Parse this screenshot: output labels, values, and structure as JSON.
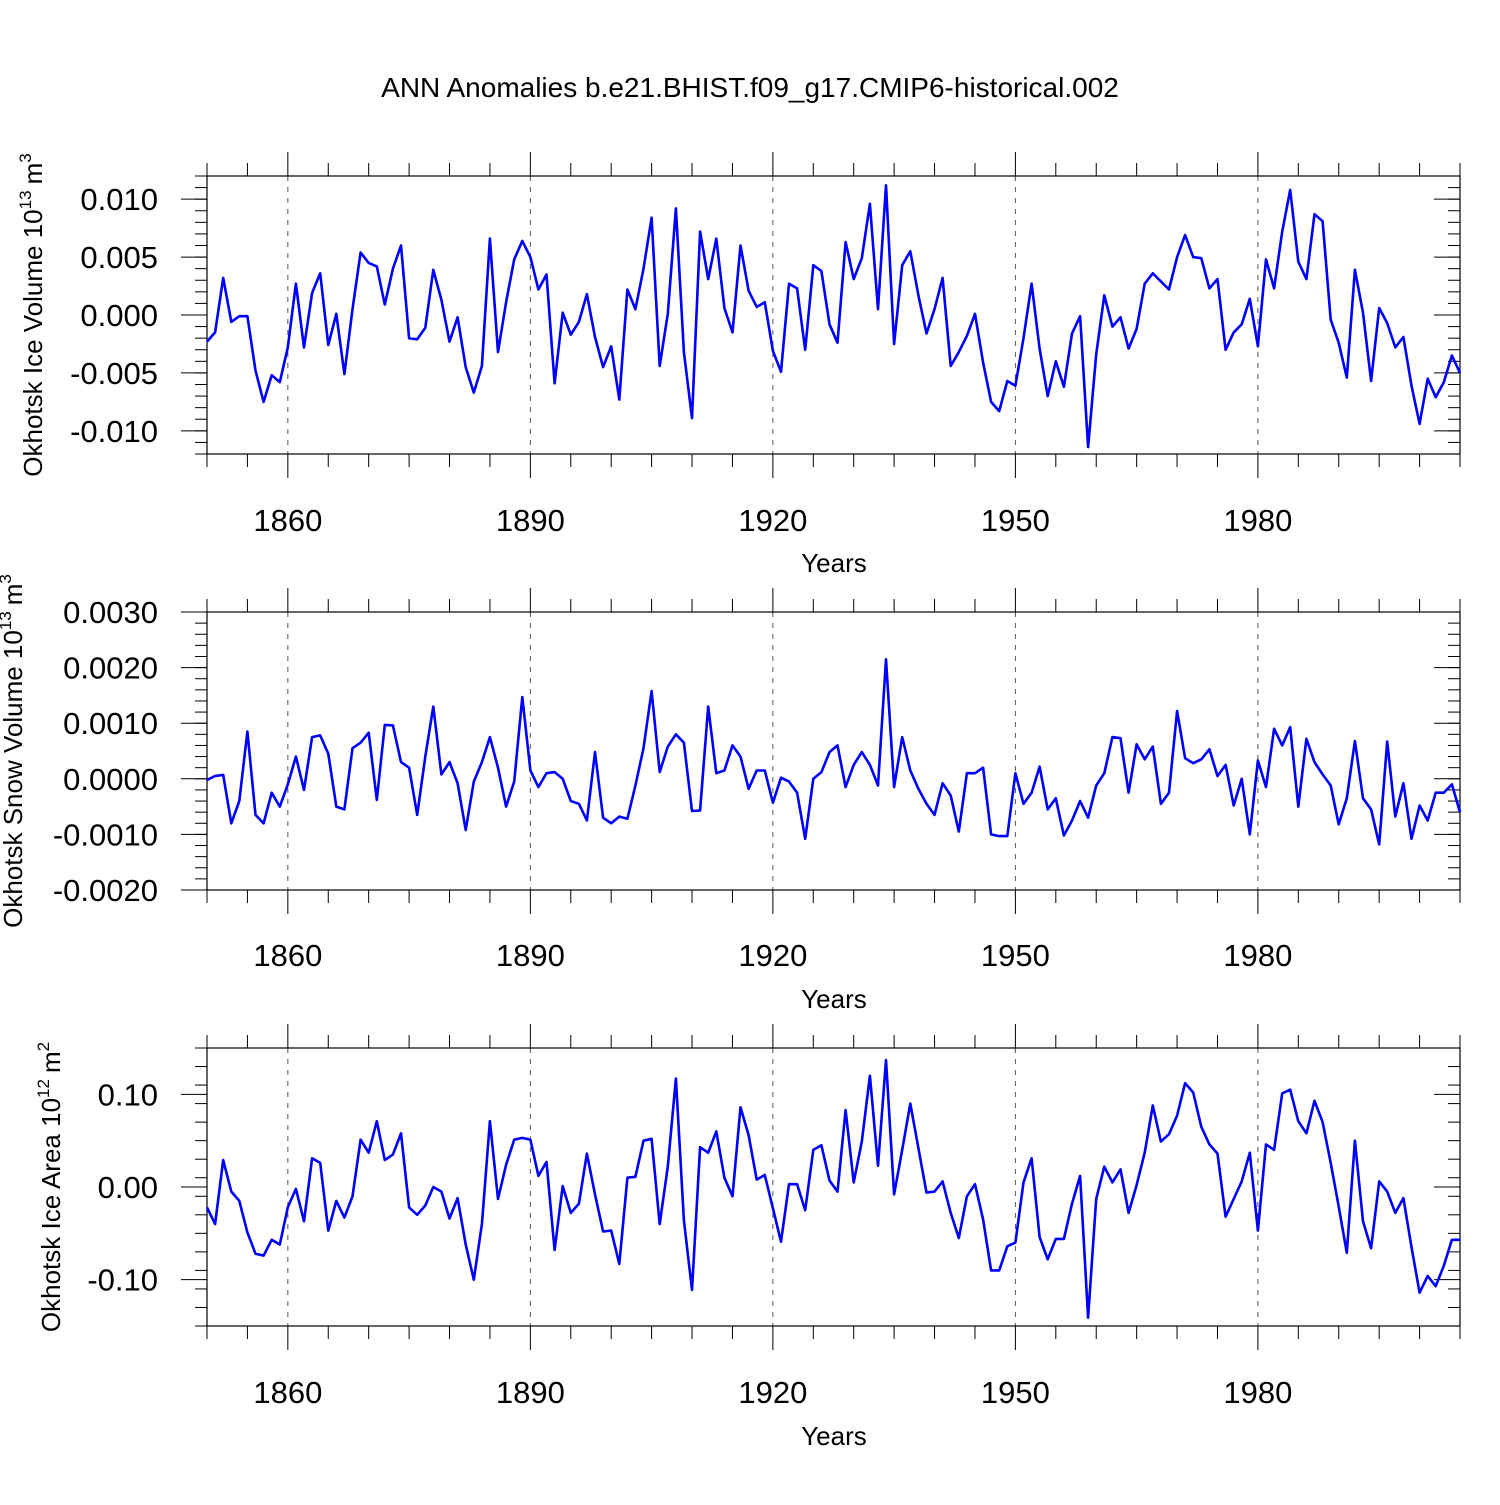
{
  "figure": {
    "title": "ANN Anomalies b.e21.BHIST.f09_g17.CMIP6-historical.002"
  },
  "chart_data": [
    {
      "type": "line",
      "xlabel": "Years",
      "ylabel": "Okhotsk Ice Volume 10",
      "ylabel_exponent": "13",
      "ylabel_unit": "m",
      "ylabel_unit_exponent": "3",
      "xlim": [
        1850,
        2005
      ],
      "ylim": [
        -0.012,
        0.012
      ],
      "x_ticks": [
        1860,
        1890,
        1920,
        1950,
        1980
      ],
      "x_tick_labels": [
        "1860",
        "1890",
        "1920",
        "1950",
        "1980"
      ],
      "y_ticks": [
        -0.01,
        -0.005,
        0.0,
        0.005,
        0.01
      ],
      "y_tick_labels": [
        "-0.010",
        "-0.005",
        "0.000",
        "0.005",
        "0.010"
      ],
      "y_minor_step": 0.001,
      "x_start": 1850,
      "line_color": "#0000ff",
      "values": [
        -0.0023,
        -0.0015,
        0.0032,
        -0.0006,
        -0.0001,
        -0.0001,
        -0.0048,
        -0.0075,
        -0.0052,
        -0.0058,
        -0.0028,
        0.0027,
        -0.0028,
        0.0019,
        0.0036,
        -0.0026,
        0.0001,
        -0.0051,
        0.0005,
        0.0054,
        0.0045,
        0.0042,
        0.0009,
        0.004,
        0.006,
        -0.002,
        -0.0021,
        -0.0011,
        0.0039,
        0.0013,
        -0.0023,
        -0.0002,
        -0.0045,
        -0.0067,
        -0.0044,
        0.0066,
        -0.0032,
        0.0011,
        0.0048,
        0.0064,
        0.005,
        0.0022,
        0.0035,
        -0.0059,
        0.0002,
        -0.0017,
        -0.0006,
        0.0018,
        -0.0019,
        -0.0045,
        -0.0027,
        -0.0073,
        0.0022,
        0.0005,
        0.004,
        0.0084,
        -0.0044,
        0.0001,
        0.0092,
        -0.0032,
        -0.0089,
        0.0072,
        0.0031,
        0.0066,
        0.0006,
        -0.0015,
        0.006,
        0.0021,
        0.0007,
        0.0011,
        -0.0031,
        -0.0049,
        0.0027,
        0.0023,
        -0.003,
        0.0043,
        0.0038,
        -0.0008,
        -0.0024,
        0.0063,
        0.0031,
        0.0049,
        0.0096,
        0.0005,
        0.0112,
        -0.0025,
        0.0043,
        0.0055,
        0.0017,
        -0.0016,
        0.0005,
        0.0032,
        -0.0044,
        -0.0032,
        -0.0018,
        0.0001,
        -0.0041,
        -0.0075,
        -0.0083,
        -0.0057,
        -0.0061,
        -0.002,
        0.0027,
        -0.0029,
        -0.007,
        -0.004,
        -0.0062,
        -0.0016,
        -0.0001,
        -0.0114,
        -0.0034,
        0.0017,
        -0.001,
        -0.0002,
        -0.0029,
        -0.0012,
        0.0027,
        0.0036,
        0.0029,
        0.0022,
        0.005,
        0.0069,
        0.005,
        0.0049,
        0.0023,
        0.0031,
        -0.003,
        -0.0015,
        -0.0008,
        0.0014,
        -0.0027,
        0.0048,
        0.0023,
        0.0072,
        0.0108,
        0.0046,
        0.0031,
        0.0087,
        0.0081,
        -0.0004,
        -0.0024,
        -0.0054,
        0.0039,
        0.0002,
        -0.0057,
        0.0006,
        -0.0007,
        -0.0028,
        -0.0019,
        -0.0061,
        -0.0094,
        -0.0055,
        -0.0071,
        -0.0058,
        -0.0035,
        -0.005
      ]
    },
    {
      "type": "line",
      "xlabel": "Years",
      "ylabel": "Okhotsk Snow Volume 10",
      "ylabel_exponent": "13",
      "ylabel_unit": "m",
      "ylabel_unit_exponent": "3",
      "xlim": [
        1850,
        2005
      ],
      "ylim": [
        -0.002,
        0.003
      ],
      "x_ticks": [
        1860,
        1890,
        1920,
        1950,
        1980
      ],
      "x_tick_labels": [
        "1860",
        "1890",
        "1920",
        "1950",
        "1980"
      ],
      "y_ticks": [
        -0.002,
        -0.001,
        0.0,
        0.001,
        0.002,
        0.003
      ],
      "y_tick_labels": [
        "-0.0020",
        "-0.0010",
        "0.0000",
        "0.0010",
        "0.0020",
        "0.0030"
      ],
      "y_minor_step": 0.0002,
      "x_start": 1850,
      "line_color": "#0000ff",
      "values": [
        -2e-05,
        5e-05,
        7e-05,
        -0.0008,
        -0.0004,
        0.00085,
        -0.00065,
        -0.0008,
        -0.00025,
        -0.0005,
        -0.0001,
        0.0004,
        -0.0002,
        0.00075,
        0.00078,
        0.00045,
        -0.0005,
        -0.00055,
        0.00055,
        0.00065,
        0.00083,
        -0.00038,
        0.00097,
        0.00096,
        0.0003,
        0.0002,
        -0.00065,
        0.0004,
        0.0013,
        8e-05,
        0.0003,
        -8e-05,
        -0.00092,
        -5e-05,
        0.0003,
        0.00075,
        0.0002,
        -0.0005,
        -5e-05,
        0.00147,
        0.00015,
        -0.00015,
        0.0001,
        0.00012,
        0.0,
        -0.0004,
        -0.00045,
        -0.00075,
        0.00048,
        -0.0007,
        -0.0008,
        -0.00068,
        -0.00072,
        -0.00012,
        0.00055,
        0.00158,
        0.00012,
        0.00058,
        0.0008,
        0.00065,
        -0.00058,
        -0.00057,
        0.0013,
        0.0001,
        0.00015,
        0.0006,
        0.0004,
        -0.00018,
        0.00015,
        0.00015,
        -0.00043,
        2e-05,
        -5e-05,
        -0.00025,
        -0.00108,
        0.0,
        0.00012,
        0.00048,
        0.0006,
        -0.00015,
        0.00025,
        0.00048,
        0.00025,
        -0.00012,
        0.00215,
        -0.00015,
        0.00075,
        0.00015,
        -0.00018,
        -0.00045,
        -0.00065,
        -8e-05,
        -0.0003,
        -0.00095,
        0.0001,
        0.0001,
        0.0002,
        -0.001,
        -0.00103,
        -0.00103,
        0.0001,
        -0.00045,
        -0.00025,
        0.00022,
        -0.00055,
        -0.00035,
        -0.00102,
        -0.00075,
        -0.0004,
        -0.0007,
        -0.00012,
        0.0001,
        0.00075,
        0.00073,
        -0.00025,
        0.00062,
        0.00035,
        0.00058,
        -0.00045,
        -0.00025,
        0.00122,
        0.00037,
        0.00028,
        0.00035,
        0.00053,
        5e-05,
        0.00025,
        -0.00048,
        0.0,
        -0.001,
        0.00033,
        -0.00015,
        0.0009,
        0.0006,
        0.00093,
        -0.0005,
        0.00072,
        0.0003,
        8e-05,
        -0.00012,
        -0.00082,
        -0.00035,
        0.00068,
        -0.00035,
        -0.00055,
        -0.00118,
        0.00067,
        -0.00068,
        -8e-05,
        -0.00108,
        -0.00048,
        -0.00075,
        -0.00025,
        -0.00025,
        -0.0001,
        -0.0006
      ]
    },
    {
      "type": "line",
      "xlabel": "Years",
      "ylabel": "Okhotsk Ice Area 10",
      "ylabel_exponent": "12",
      "ylabel_unit": "m",
      "ylabel_unit_exponent": "2",
      "xlim": [
        1850,
        2005
      ],
      "ylim": [
        -0.15,
        0.15
      ],
      "x_ticks": [
        1860,
        1890,
        1920,
        1950,
        1980
      ],
      "x_tick_labels": [
        "1860",
        "1890",
        "1920",
        "1950",
        "1980"
      ],
      "y_ticks": [
        -0.1,
        0.0,
        0.1
      ],
      "y_tick_labels": [
        "-0.10",
        "0.00",
        "0.10"
      ],
      "y_minor_step": 0.02,
      "x_start": 1850,
      "line_color": "#0000ff",
      "values": [
        -0.022,
        -0.04,
        0.029,
        -0.005,
        -0.015,
        -0.049,
        -0.072,
        -0.074,
        -0.057,
        -0.062,
        -0.022,
        -0.002,
        -0.037,
        0.031,
        0.026,
        -0.047,
        -0.015,
        -0.033,
        -0.01,
        0.051,
        0.037,
        0.071,
        0.029,
        0.035,
        0.058,
        -0.022,
        -0.03,
        -0.02,
        0.0,
        -0.005,
        -0.034,
        -0.012,
        -0.062,
        -0.1,
        -0.04,
        0.071,
        -0.013,
        0.024,
        0.051,
        0.053,
        0.051,
        0.012,
        0.027,
        -0.068,
        0.001,
        -0.028,
        -0.018,
        0.036,
        -0.008,
        -0.048,
        -0.047,
        -0.083,
        0.01,
        0.011,
        0.05,
        0.052,
        -0.04,
        0.022,
        0.117,
        -0.036,
        -0.111,
        0.043,
        0.037,
        0.06,
        0.01,
        -0.01,
        0.086,
        0.056,
        0.008,
        0.013,
        -0.023,
        -0.059,
        0.003,
        0.003,
        -0.025,
        0.04,
        0.045,
        0.007,
        -0.005,
        0.083,
        0.005,
        0.049,
        0.12,
        0.023,
        0.137,
        -0.008,
        0.04,
        0.09,
        0.042,
        -0.006,
        -0.005,
        0.006,
        -0.028,
        -0.055,
        -0.01,
        0.003,
        -0.035,
        -0.09,
        -0.09,
        -0.064,
        -0.06,
        0.005,
        0.031,
        -0.054,
        -0.078,
        -0.056,
        -0.056,
        -0.018,
        0.012,
        -0.141,
        -0.013,
        0.022,
        0.005,
        0.019,
        -0.028,
        0.002,
        0.037,
        0.088,
        0.049,
        0.057,
        0.077,
        0.112,
        0.102,
        0.065,
        0.046,
        0.036,
        -0.032,
        -0.013,
        0.006,
        0.037,
        -0.047,
        0.046,
        0.04,
        0.101,
        0.105,
        0.071,
        0.058,
        0.093,
        0.07,
        0.026,
        -0.021,
        -0.071,
        0.05,
        -0.037,
        -0.066,
        0.006,
        -0.005,
        -0.028,
        -0.012,
        -0.065,
        -0.114,
        -0.096,
        -0.107,
        -0.085,
        -0.057,
        -0.057
      ]
    }
  ]
}
